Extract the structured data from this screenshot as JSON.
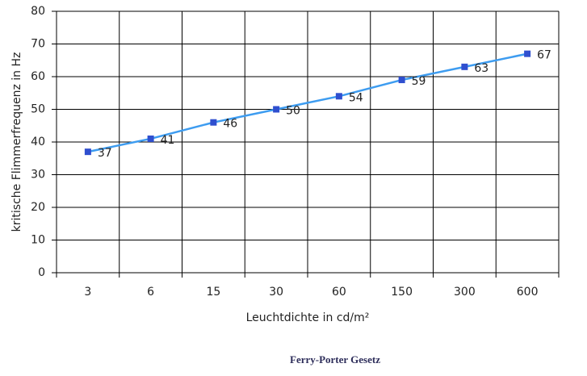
{
  "chart_data": {
    "type": "line",
    "x_label": "Leuchtdichte in cd/m²",
    "y_label": "kritische Flimmerfrequenz in Hz",
    "caption": "Ferry-Porter Gesetz",
    "categories": [
      "3",
      "6",
      "15",
      "30",
      "60",
      "150",
      "300",
      "600"
    ],
    "series": [
      {
        "name": "kritische Flimmerfrequenz",
        "color": "#3d9cf0",
        "marker_color": "#2f4fcf",
        "values": [
          37,
          41,
          46,
          50,
          54,
          59,
          63,
          67
        ]
      }
    ],
    "ylim": [
      0,
      80
    ],
    "yticks": [
      0,
      10,
      20,
      30,
      40,
      50,
      60,
      70,
      80
    ],
    "grid": true
  }
}
